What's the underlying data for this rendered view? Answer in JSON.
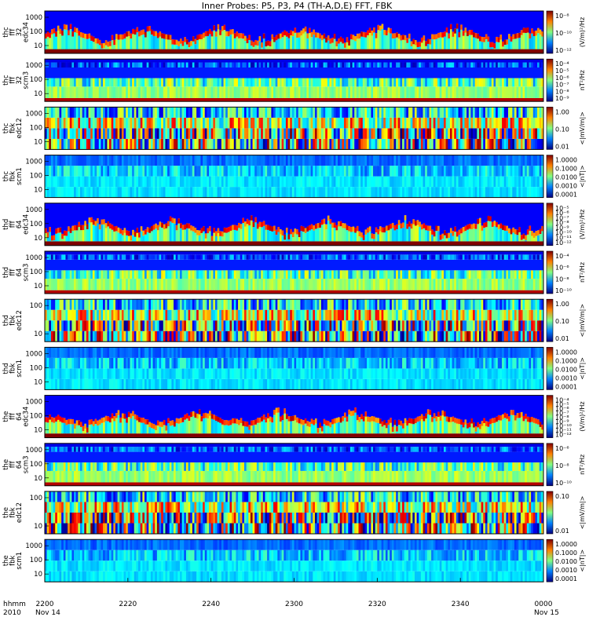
{
  "chart_data": {
    "type": "heatmap",
    "title": "Inner Probes: P5, P3, P4 (TH-A,D,E) FFT, FBK",
    "xaxis": {
      "name": "hhmm",
      "year": "2010",
      "ticks": [
        "2200",
        "2220",
        "2240",
        "2300",
        "2320",
        "2340",
        "0000"
      ],
      "start_date": "Nov 14",
      "end_date": "Nov 15"
    },
    "panels": [
      {
        "label": [
          "thc",
          "fff",
          "32",
          "edc34"
        ],
        "yticks": [
          "1000",
          "100",
          "10"
        ],
        "cbar_ticks": [
          "10⁻⁸",
          "10⁻¹⁰",
          "10⁻¹²"
        ],
        "cbar_unit": "(V/m)²/Hz"
      },
      {
        "label": [
          "thc",
          "fff",
          "32",
          "scm3"
        ],
        "yticks": [
          "1000",
          "100",
          "10"
        ],
        "cbar_ticks": [
          "10⁻⁴",
          "10⁻⁵",
          "10⁻⁶",
          "10⁻⁷",
          "10⁻⁸",
          "10⁻⁹"
        ],
        "cbar_unit": "nT²/Hz"
      },
      {
        "label": [
          "thc",
          "fbk",
          "edc12"
        ],
        "yticks": [
          "1000",
          "100",
          "10"
        ],
        "cbar_ticks": [
          "1.00",
          "0.10",
          "0.01"
        ],
        "cbar_unit": "<|mV/m|>"
      },
      {
        "label": [
          "thc",
          "fbk",
          "scm1"
        ],
        "yticks": [
          "1000",
          "100",
          "10"
        ],
        "cbar_ticks": [
          "1.0000",
          "0.1000",
          "0.0100",
          "0.0010",
          "0.0001"
        ],
        "cbar_unit": "<|nT|>"
      },
      {
        "label": [
          "thd",
          "fff",
          "64",
          "edc34"
        ],
        "yticks": [
          "1000",
          "100",
          "10"
        ],
        "cbar_ticks": [
          "10⁻⁵",
          "10⁻⁶",
          "10⁻⁷",
          "10⁻⁸",
          "10⁻⁹",
          "10⁻¹⁰",
          "10⁻¹¹",
          "10⁻¹²"
        ],
        "cbar_unit": "(V/m)²/Hz"
      },
      {
        "label": [
          "thd",
          "fff",
          "64",
          "scm3"
        ],
        "yticks": [
          "1000",
          "100",
          "10"
        ],
        "cbar_ticks": [
          "10⁻⁴",
          "10⁻⁶",
          "10⁻⁸",
          "10⁻¹⁰"
        ],
        "cbar_unit": "nT²/Hz"
      },
      {
        "label": [
          "thd",
          "fbk",
          "edc12"
        ],
        "yticks": [
          "100",
          "10"
        ],
        "cbar_ticks": [
          "1.00",
          "0.10",
          "0.01"
        ],
        "cbar_unit": "<|mV/m|>"
      },
      {
        "label": [
          "thd",
          "fbk",
          "scm1"
        ],
        "yticks": [
          "1000",
          "100",
          "10"
        ],
        "cbar_ticks": [
          "1.0000",
          "0.1000",
          "0.0100",
          "0.0010",
          "0.0001"
        ],
        "cbar_unit": "<|nT|>"
      },
      {
        "label": [
          "the",
          "fff",
          "64",
          "edc34"
        ],
        "yticks": [
          "1000",
          "100",
          "10"
        ],
        "cbar_ticks": [
          "10⁻⁴",
          "10⁻⁵",
          "10⁻⁶",
          "10⁻⁷",
          "10⁻⁸",
          "10⁻⁹",
          "10⁻¹⁰",
          "10⁻¹¹",
          "10⁻¹²"
        ],
        "cbar_unit": "(V/m)²/Hz"
      },
      {
        "label": [
          "the",
          "fff",
          "64",
          "scm3"
        ],
        "yticks": [
          "1000",
          "100",
          "10"
        ],
        "cbar_ticks": [
          "10⁻⁶",
          "10⁻⁸",
          "10⁻¹⁰"
        ],
        "cbar_unit": "nT²/Hz"
      },
      {
        "label": [
          "the",
          "fbk",
          "edc12"
        ],
        "yticks": [
          "100",
          "10"
        ],
        "cbar_ticks": [
          "0.10",
          "0.01"
        ],
        "cbar_unit": "<|mV/m|>"
      },
      {
        "label": [
          "the",
          "fbk",
          "scm1"
        ],
        "yticks": [
          "1000",
          "100",
          "10"
        ],
        "cbar_ticks": [
          "1.0000",
          "0.1000",
          "0.0100",
          "0.0010",
          "0.0001"
        ],
        "cbar_unit": "<|nT|>"
      }
    ]
  }
}
